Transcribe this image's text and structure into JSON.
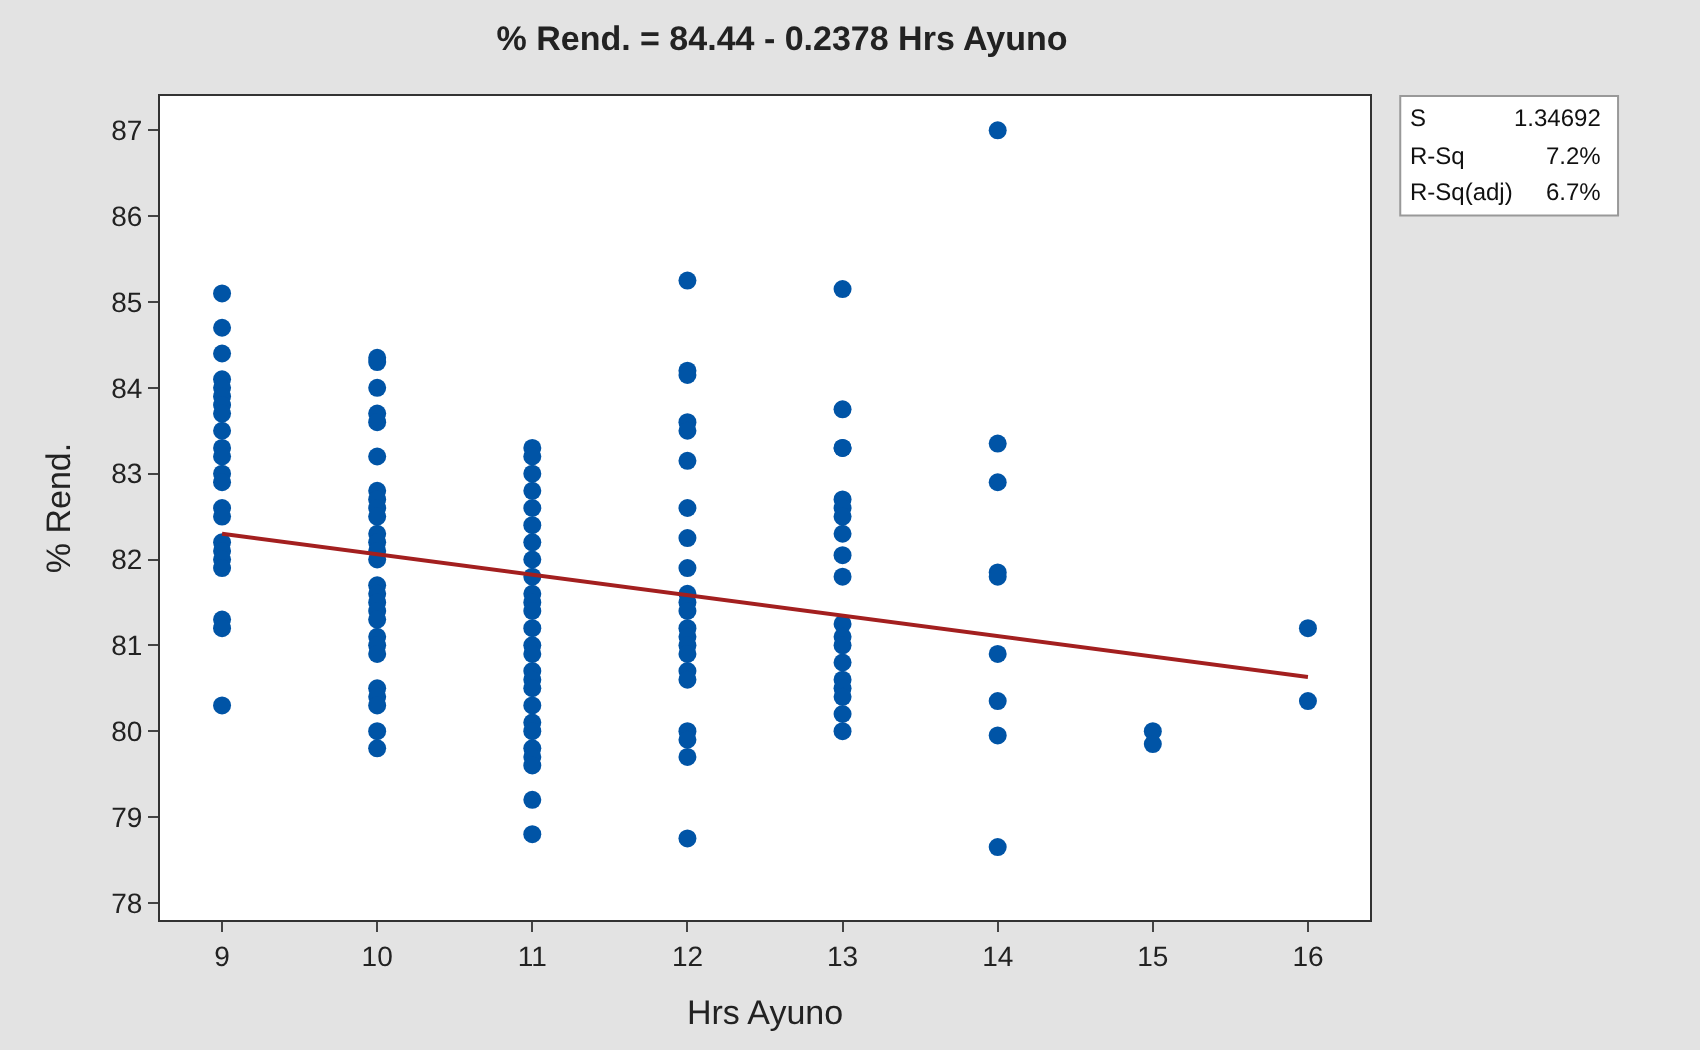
{
  "chart_data": {
    "type": "scatter",
    "title": "% Rend. = 84.44 - 0.2378 Hrs Ayuno",
    "xlabel": "Hrs Ayuno",
    "ylabel": "% Rend.",
    "xlim": [
      8.6,
      16.4
    ],
    "xticks": [
      9,
      10,
      11,
      12,
      13,
      14,
      15,
      16
    ],
    "ylim": [
      77.8,
      87.4
    ],
    "yticks": [
      78,
      79,
      80,
      81,
      82,
      83,
      84,
      85,
      86,
      87
    ],
    "marker": "circle",
    "annotations": [
      "S",
      "1.34692",
      "R-Sq",
      "7.2%",
      "R-Sq(adj)",
      "6.7%"
    ],
    "series": [
      {
        "color": "#0054a6",
        "x": [
          9,
          9,
          9,
          9,
          9,
          9,
          9,
          9,
          9,
          9,
          9,
          9,
          9,
          9,
          9,
          9,
          9,
          9,
          9,
          9,
          9,
          9,
          10,
          10,
          10,
          10,
          10,
          10,
          10,
          10,
          10,
          10,
          10,
          10,
          10,
          10,
          10,
          10,
          10,
          10,
          10,
          10,
          10,
          10,
          10,
          10,
          10,
          10,
          10,
          11,
          11,
          11,
          11,
          11,
          11,
          11,
          11,
          11,
          11,
          11,
          11,
          11,
          11,
          11,
          11,
          11,
          11,
          11,
          11,
          11,
          11,
          11,
          11,
          11,
          11,
          12,
          12,
          12,
          12,
          12,
          12,
          12,
          12,
          12,
          12,
          12,
          12,
          12,
          12,
          12,
          12,
          12,
          12,
          12,
          12,
          12,
          12,
          13,
          13,
          13,
          13,
          13,
          13,
          13,
          13,
          13,
          13,
          13,
          13,
          13,
          13,
          13,
          13,
          13,
          13,
          13,
          14,
          14,
          14,
          14,
          14,
          14,
          14,
          14,
          14,
          15,
          15,
          16,
          16
        ],
        "values": [
          85.1,
          84.7,
          84.4,
          84.1,
          84.0,
          83.9,
          83.8,
          83.7,
          83.5,
          83.3,
          83.2,
          83.0,
          82.9,
          82.6,
          82.5,
          82.2,
          82.1,
          82.0,
          81.9,
          81.3,
          81.2,
          80.3,
          84.35,
          84.3,
          84.0,
          83.7,
          83.6,
          83.2,
          82.8,
          82.7,
          82.6,
          82.5,
          82.3,
          82.2,
          82.1,
          82.0,
          81.7,
          81.6,
          81.5,
          81.4,
          81.3,
          81.1,
          81.0,
          80.9,
          80.5,
          80.4,
          80.3,
          80.0,
          79.8,
          83.3,
          83.2,
          83.0,
          82.8,
          82.6,
          82.4,
          82.2,
          82.0,
          81.8,
          81.6,
          81.5,
          81.4,
          81.2,
          81.0,
          80.9,
          80.7,
          80.6,
          80.5,
          80.3,
          80.1,
          80.0,
          79.8,
          79.7,
          79.6,
          79.2,
          78.8,
          85.25,
          84.2,
          84.15,
          83.6,
          83.5,
          83.15,
          82.6,
          82.25,
          81.9,
          81.6,
          81.5,
          81.4,
          81.2,
          81.1,
          81.0,
          80.9,
          80.7,
          80.6,
          80.0,
          79.9,
          79.7,
          78.75,
          85.15,
          83.75,
          83.3,
          83.3,
          82.7,
          82.6,
          82.5,
          82.3,
          82.05,
          81.8,
          81.25,
          81.1,
          81.0,
          80.8,
          80.6,
          80.5,
          80.4,
          80.2,
          80.0,
          87.0,
          83.35,
          82.9,
          81.85,
          81.8,
          80.9,
          80.35,
          79.95,
          78.65,
          80.0,
          79.85,
          81.2,
          80.35
        ]
      },
      {
        "type": "line",
        "color": "#a31f1f",
        "line_style": "solid",
        "marker": "none",
        "x": [
          9,
          16
        ],
        "values": [
          82.3,
          80.63
        ]
      }
    ]
  }
}
